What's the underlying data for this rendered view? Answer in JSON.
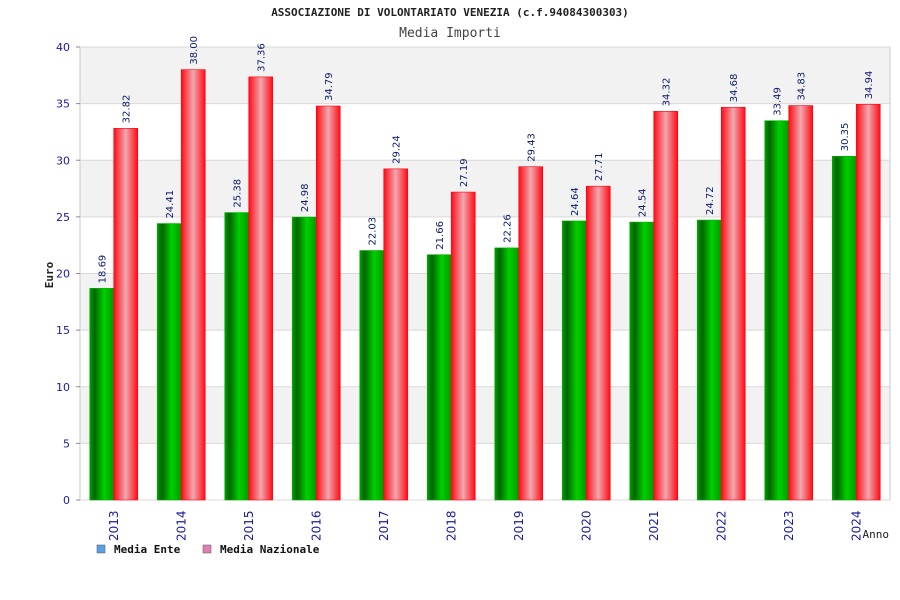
{
  "chart_data": {
    "type": "bar",
    "title": "ASSOCIAZIONE DI VOLONTARIATO VENEZIA (c.f.94084300303)",
    "subtitle": "Media Importi",
    "xlabel": "Anno",
    "ylabel": "Euro",
    "ylim": [
      0,
      40
    ],
    "yticks": [
      0,
      5,
      10,
      15,
      20,
      25,
      30,
      35,
      40
    ],
    "categories": [
      "2013",
      "2014",
      "2015",
      "2016",
      "2017",
      "2018",
      "2019",
      "2020",
      "2021",
      "2022",
      "2023",
      "2024"
    ],
    "series": [
      {
        "name": "Media Ente",
        "color": "#00c000",
        "legend_color": "#5aa0e6",
        "values": [
          18.69,
          24.41,
          25.38,
          24.98,
          22.03,
          21.66,
          22.26,
          24.64,
          24.54,
          24.72,
          33.49,
          30.35
        ],
        "labels": [
          "18.69",
          "24.41",
          "25.38",
          "24.98",
          "22.03",
          "21.66",
          "22.26",
          "24.64",
          "24.54",
          "24.72",
          "33.49",
          "30.35"
        ]
      },
      {
        "name": "Media Nazionale",
        "color": "#ff1020",
        "legend_color": "#e080b0",
        "values": [
          32.82,
          38.0,
          37.36,
          34.79,
          29.24,
          27.19,
          29.43,
          27.71,
          34.32,
          34.68,
          34.83,
          34.94
        ],
        "labels": [
          "32.82",
          "38.00",
          "37.36",
          "34.79",
          "29.24",
          "27.19",
          "29.43",
          "27.71",
          "34.32",
          "34.68",
          "34.83",
          "34.94"
        ]
      }
    ],
    "grid": true,
    "legend": "bottom-left"
  }
}
